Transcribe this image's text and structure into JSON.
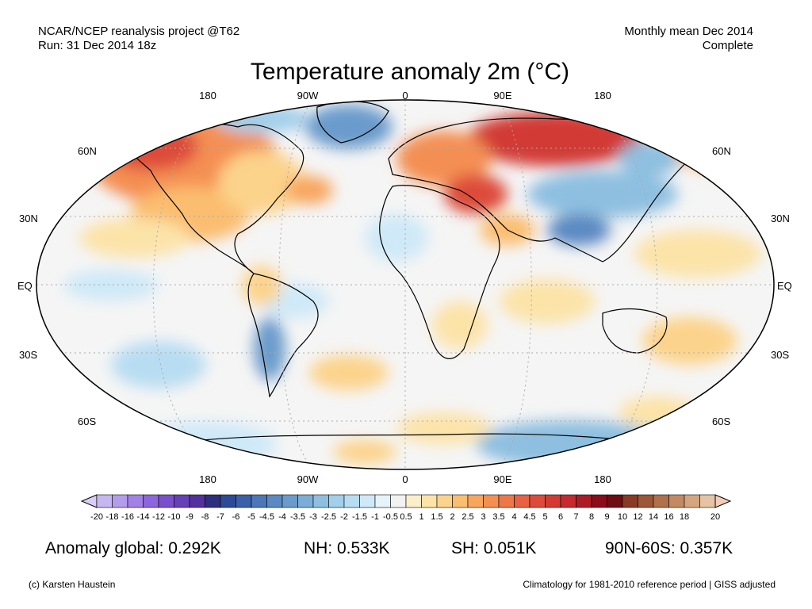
{
  "header": {
    "project": "NCAR/NCEP reanalysis project @T62",
    "run": "Run: 31 Dec 2014 18z",
    "period": "Monthly mean Dec 2014",
    "status": "Complete"
  },
  "title": "Temperature anomaly 2m (°C)",
  "map": {
    "top_longitude_labels": [
      "180",
      "90W",
      "0",
      "90E",
      "180"
    ],
    "bottom_longitude_labels": [
      "180",
      "90W",
      "0",
      "90E",
      "180"
    ],
    "left_latitude_labels": [
      "60N",
      "30N",
      "EQ",
      "30S",
      "60S"
    ],
    "right_latitude_labels": [
      "60N",
      "30N",
      "EQ",
      "30S",
      "60S"
    ],
    "colors": {
      "ocean": "#f5f5f5",
      "grid": "#aaaaaa",
      "border": "#000000"
    }
  },
  "colorbar": {
    "labels": [
      "-20",
      "-18",
      "-16",
      "-14",
      "-12",
      "-10",
      "-9",
      "-8",
      "-7",
      "-6",
      "-5",
      "-4.5",
      "-4",
      "-3.5",
      "-3",
      "-2.5",
      "-2",
      "-1.5",
      "-1",
      "-0.5",
      "0.5",
      "1",
      "1.5",
      "2",
      "2.5",
      "3",
      "3.5",
      "4",
      "4.5",
      "5",
      "6",
      "7",
      "8",
      "9",
      "10",
      "12",
      "14",
      "16",
      "18",
      "20"
    ],
    "colors": [
      "#c6b7f3",
      "#b49ced",
      "#a181e6",
      "#8d65dd",
      "#7a4fce",
      "#6740b8",
      "#53319c",
      "#2d2f7e",
      "#2d4a96",
      "#3960a8",
      "#4b77b8",
      "#5b89c2",
      "#6b9bcc",
      "#7cadd6",
      "#8ebfe0",
      "#a2cfea",
      "#b8ddf2",
      "#cfe9f8",
      "#e5f3fb",
      "#f2f2f2",
      "#fbeec9",
      "#fce3a8",
      "#fcd38b",
      "#fbbd70",
      "#f8a65e",
      "#f48f52",
      "#ee774a",
      "#e76142",
      "#dd4c3b",
      "#d23b34",
      "#c42a2e",
      "#ad1c25",
      "#8c0c1a",
      "#6e0d12",
      "#8a3a24",
      "#9d5636",
      "#b0704a",
      "#c38a62",
      "#d5a67e",
      "#e6c3a4"
    ],
    "under_color": "#d8cff7",
    "over_color": "#f2cdb8"
  },
  "stats": {
    "global": "Anomaly global: 0.292K",
    "nh": "NH: 0.533K",
    "sh": "SH: 0.051K",
    "arctic": "90N-60S: 0.357K"
  },
  "footer": {
    "credit": "(c) Karsten Haustein",
    "note": "Climatology for 1981-2010 reference period | GISS adjusted"
  }
}
